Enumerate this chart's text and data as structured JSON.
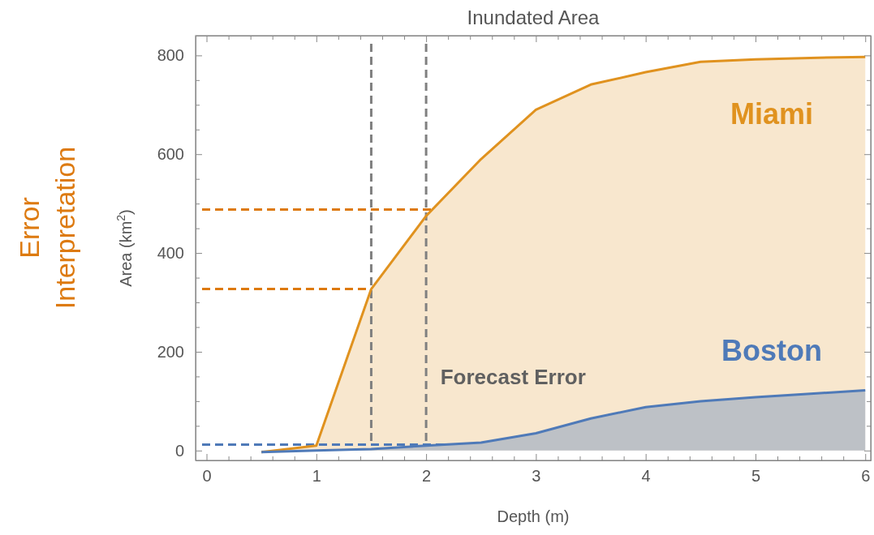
{
  "chart_data": {
    "type": "area",
    "title": "Inundated Area",
    "xlabel": "Depth (m)",
    "ylabel": "Area (km$^{2}$)",
    "annotations": [
      "Error Interpretation",
      "Forecast Error"
    ],
    "x": [
      0.5,
      1,
      1.5,
      2,
      2.5,
      3,
      3.5,
      4,
      4.5,
      5,
      5.5,
      6
    ],
    "series": [
      {
        "name": "Miami",
        "color": "#e0921f",
        "values": [
          -3,
          10,
          327,
          475,
          590,
          690,
          741,
          766,
          787,
          792,
          795,
          797
        ]
      },
      {
        "name": "Boston",
        "color": "#4f7ab8",
        "values": [
          -3,
          0,
          3,
          10,
          16,
          35,
          65,
          88,
          100,
          108,
          115,
          122
        ]
      }
    ],
    "xlim": [
      -0.1,
      6.05
    ],
    "ylim": [
      -20,
      840
    ],
    "xticks": [
      0,
      {
        "value": 0.2,
        "label": null
      },
      {
        "value": 0.4,
        "label": null
      },
      {
        "value": 0.6,
        "label": null
      },
      {
        "value": 0.8,
        "label": null
      },
      1,
      {
        "value": 1.2,
        "label": null
      },
      {
        "value": 1.4,
        "label": null
      },
      {
        "value": 1.6,
        "label": null
      },
      {
        "value": 1.8,
        "label": null
      },
      2,
      {
        "value": 2.2,
        "label": null
      },
      {
        "value": 2.4,
        "label": null
      },
      {
        "value": 2.6,
        "label": null
      },
      {
        "value": 2.8,
        "label": null
      },
      3,
      {
        "value": 3.2,
        "label": null
      },
      {
        "value": 3.4,
        "label": null
      },
      {
        "value": 3.6,
        "label": null
      },
      {
        "value": 3.8,
        "label": null
      },
      4,
      {
        "value": 4.2,
        "label": null
      },
      {
        "value": 4.4,
        "label": null
      },
      {
        "value": 4.6,
        "label": null
      },
      {
        "value": 4.8,
        "label": null
      },
      5,
      {
        "value": 5.2,
        "label": null
      },
      {
        "value": 5.4,
        "label": null
      },
      {
        "value": 5.6,
        "label": null
      },
      {
        "value": 5.8,
        "label": null
      },
      6
    ],
    "yticks": [
      0,
      {
        "value": 50,
        "label": null
      },
      {
        "value": 100,
        "label": null
      },
      {
        "value": 150,
        "label": null
      },
      200,
      {
        "value": 250,
        "label": null
      },
      {
        "value": 300,
        "label": null
      },
      {
        "value": 350,
        "label": null
      },
      400,
      {
        "value": 450,
        "label": null
      },
      {
        "value": 500,
        "label": null
      },
      {
        "value": 550,
        "label": null
      },
      600,
      {
        "value": 650,
        "label": null
      },
      {
        "value": 700,
        "label": null
      },
      {
        "value": 750,
        "label": null
      },
      800
    ],
    "ref_lines": [
      {
        "axis": "x",
        "value": 1.5,
        "color": "#808080",
        "line_style": "dashed"
      },
      {
        "axis": "x",
        "value": 2,
        "color": "#808080",
        "line_style": "dashed"
      },
      {
        "axis": "y",
        "value": 488,
        "color": "#dd7a10",
        "line_style": "dashed"
      },
      {
        "axis": "y",
        "value": 327,
        "color": "#dd7a10",
        "line_style": "dashed"
      },
      {
        "axis": "y",
        "value": 12,
        "color": "#4f7ab8",
        "line_style": "dashed"
      }
    ]
  }
}
